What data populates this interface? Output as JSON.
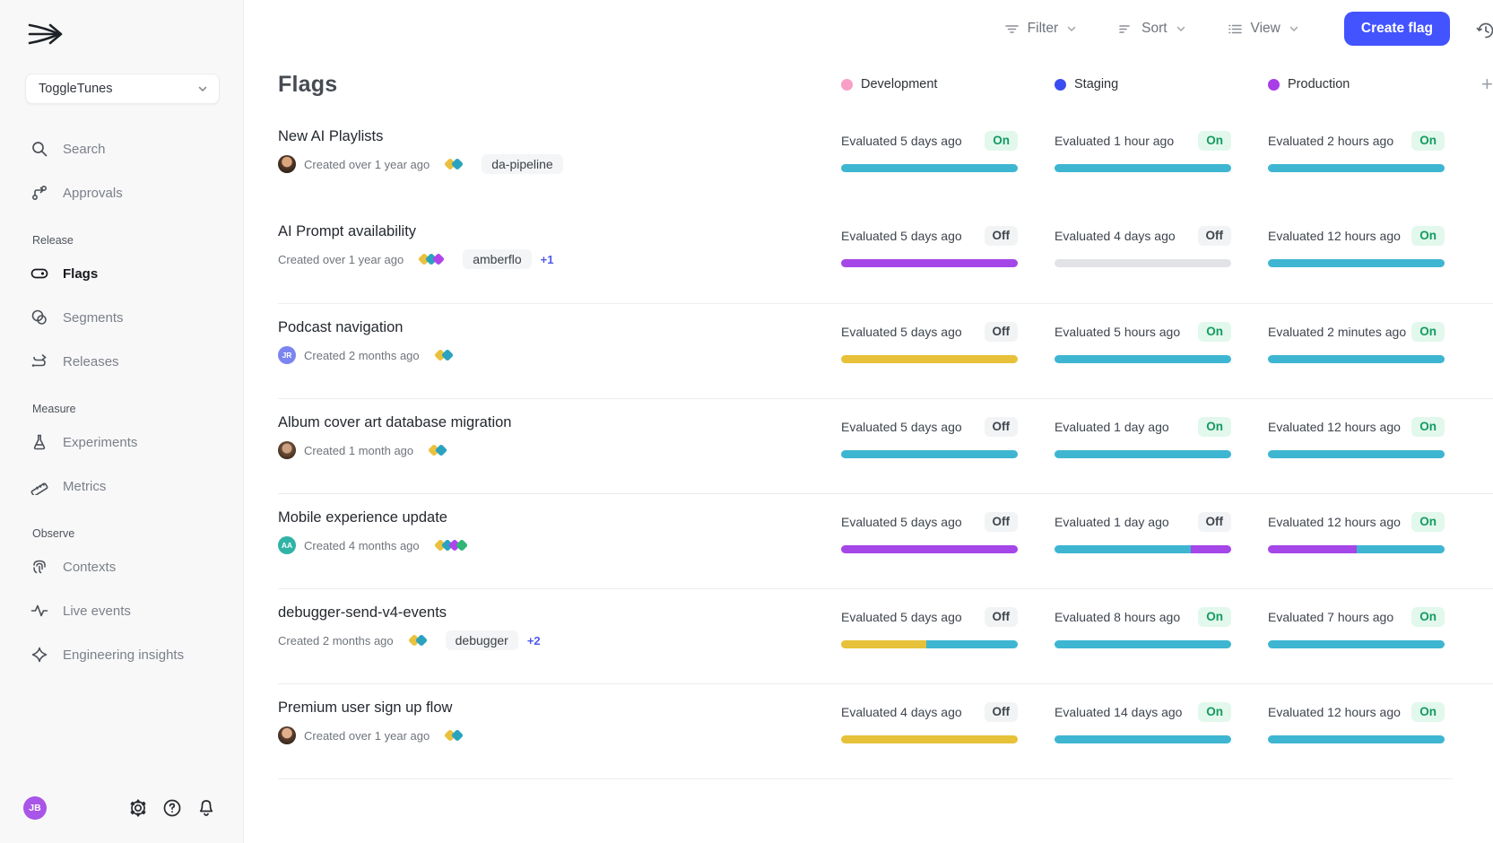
{
  "sidebar": {
    "project": "ToggleTunes",
    "items": {
      "search": "Search",
      "approvals": "Approvals",
      "flags": "Flags",
      "segments": "Segments",
      "releases": "Releases",
      "experiments": "Experiments",
      "metrics": "Metrics",
      "contexts": "Contexts",
      "live_events": "Live events",
      "engineering_insights": "Engineering insights"
    },
    "sections": {
      "release": "Release",
      "measure": "Measure",
      "observe": "Observe"
    },
    "user_initials": "JB",
    "user_color": "#a855e8"
  },
  "topbar": {
    "filter": "Filter",
    "sort": "Sort",
    "view": "View",
    "create_flag": "Create flag"
  },
  "page": {
    "title": "Flags"
  },
  "icons": {
    "plus": "+"
  },
  "environments": [
    {
      "name": "Development",
      "color": "#f79fc7"
    },
    {
      "name": "Staging",
      "color": "#3b4df0"
    },
    {
      "name": "Production",
      "color": "#a83ee8"
    }
  ],
  "colors": {
    "accent": "#4353ff",
    "bars": {
      "teal": "#3eb6d2",
      "purple": "#a546e8",
      "yellow": "#e7c13a",
      "gray": "#e2e3e5"
    },
    "diamonds": {
      "yellow": "#eac13e",
      "teal": "#2aa3bf",
      "purple": "#ae46ec",
      "green": "#30b677"
    },
    "badge_on_text": "#149a60",
    "badge_on_bg": "#e2f8ec",
    "badge_off_text": "#3f454d",
    "badge_off_bg": "#f2f3f4"
  },
  "flags": [
    {
      "name": "New AI Playlists",
      "created": "Created over 1 year ago",
      "avatar": {
        "kind": "photo",
        "variant": "a"
      },
      "diamonds": [
        "yellow",
        "teal"
      ],
      "tags": [
        "da-pipeline"
      ],
      "tag_more": null,
      "cells": [
        {
          "evaluated": "Evaluated 5 days ago",
          "state": "On",
          "bar": [
            {
              "color": "teal",
              "pct": 100
            }
          ]
        },
        {
          "evaluated": "Evaluated 1 hour ago",
          "state": "On",
          "bar": [
            {
              "color": "teal",
              "pct": 100
            }
          ]
        },
        {
          "evaluated": "Evaluated 2 hours ago",
          "state": "On",
          "bar": [
            {
              "color": "teal",
              "pct": 100
            }
          ]
        }
      ]
    },
    {
      "name": "AI Prompt availability",
      "created": "Created over 1 year ago",
      "avatar": null,
      "diamonds": [
        "yellow",
        "teal",
        "purple"
      ],
      "tags": [
        "amberflo"
      ],
      "tag_more": "+1",
      "cells": [
        {
          "evaluated": "Evaluated 5 days ago",
          "state": "Off",
          "bar": [
            {
              "color": "purple",
              "pct": 100
            }
          ]
        },
        {
          "evaluated": "Evaluated 4 days ago",
          "state": "Off",
          "bar": [
            {
              "color": "gray",
              "pct": 100
            }
          ]
        },
        {
          "evaluated": "Evaluated 12 hours ago",
          "state": "On",
          "bar": [
            {
              "color": "teal",
              "pct": 100
            }
          ]
        }
      ]
    },
    {
      "name": "Podcast navigation",
      "created": "Created 2 months ago",
      "avatar": {
        "kind": "initials",
        "text": "JR",
        "color": "#7b85f0"
      },
      "diamonds": [
        "yellow",
        "teal"
      ],
      "tags": [],
      "tag_more": null,
      "cells": [
        {
          "evaluated": "Evaluated 5 days ago",
          "state": "Off",
          "bar": [
            {
              "color": "yellow",
              "pct": 100
            }
          ]
        },
        {
          "evaluated": "Evaluated 5 hours ago",
          "state": "On",
          "bar": [
            {
              "color": "teal",
              "pct": 100
            }
          ]
        },
        {
          "evaluated": "Evaluated 2 minutes ago",
          "state": "On",
          "bar": [
            {
              "color": "teal",
              "pct": 100
            }
          ]
        }
      ]
    },
    {
      "name": "Album cover art database migration",
      "created": "Created 1 month ago",
      "avatar": {
        "kind": "photo",
        "variant": "b"
      },
      "diamonds": [
        "yellow",
        "teal"
      ],
      "tags": [],
      "tag_more": null,
      "cells": [
        {
          "evaluated": "Evaluated 5 days ago",
          "state": "Off",
          "bar": [
            {
              "color": "teal",
              "pct": 100
            }
          ]
        },
        {
          "evaluated": "Evaluated 1 day ago",
          "state": "On",
          "bar": [
            {
              "color": "teal",
              "pct": 100
            }
          ]
        },
        {
          "evaluated": "Evaluated 12 hours ago",
          "state": "On",
          "bar": [
            {
              "color": "teal",
              "pct": 100
            }
          ]
        }
      ]
    },
    {
      "name": "Mobile experience update",
      "created": "Created 4 months ago",
      "avatar": {
        "kind": "initials",
        "text": "AA",
        "color": "#2fb3a6"
      },
      "diamonds": [
        "yellow",
        "teal",
        "purple",
        "green"
      ],
      "tags": [],
      "tag_more": null,
      "cells": [
        {
          "evaluated": "Evaluated 5 days ago",
          "state": "Off",
          "bar": [
            {
              "color": "purple",
              "pct": 100
            }
          ]
        },
        {
          "evaluated": "Evaluated 1 day ago",
          "state": "Off",
          "bar": [
            {
              "color": "teal",
              "pct": 77
            },
            {
              "color": "purple",
              "pct": 23
            }
          ]
        },
        {
          "evaluated": "Evaluated 12 hours ago",
          "state": "On",
          "bar": [
            {
              "color": "purple",
              "pct": 50
            },
            {
              "color": "teal",
              "pct": 50
            }
          ]
        }
      ]
    },
    {
      "name": "debugger-send-v4-events",
      "created": "Created 2 months ago",
      "avatar": null,
      "diamonds": [
        "yellow",
        "teal"
      ],
      "tags": [
        "debugger"
      ],
      "tag_more": "+2",
      "cells": [
        {
          "evaluated": "Evaluated 5 days ago",
          "state": "Off",
          "bar": [
            {
              "color": "yellow",
              "pct": 48
            },
            {
              "color": "teal",
              "pct": 52
            }
          ]
        },
        {
          "evaluated": "Evaluated 8 hours ago",
          "state": "On",
          "bar": [
            {
              "color": "teal",
              "pct": 100
            }
          ]
        },
        {
          "evaluated": "Evaluated 7 hours ago",
          "state": "On",
          "bar": [
            {
              "color": "teal",
              "pct": 100
            }
          ]
        }
      ]
    },
    {
      "name": "Premium user sign up flow",
      "created": "Created over 1 year ago",
      "avatar": {
        "kind": "photo",
        "variant": "c"
      },
      "diamonds": [
        "yellow",
        "teal"
      ],
      "tags": [],
      "tag_more": null,
      "cells": [
        {
          "evaluated": "Evaluated 4 days ago",
          "state": "Off",
          "bar": [
            {
              "color": "yellow",
              "pct": 100
            }
          ]
        },
        {
          "evaluated": "Evaluated 14 days ago",
          "state": "On",
          "bar": [
            {
              "color": "teal",
              "pct": 100
            }
          ]
        },
        {
          "evaluated": "Evaluated 12 hours ago",
          "state": "On",
          "bar": [
            {
              "color": "teal",
              "pct": 100
            }
          ]
        }
      ]
    }
  ]
}
